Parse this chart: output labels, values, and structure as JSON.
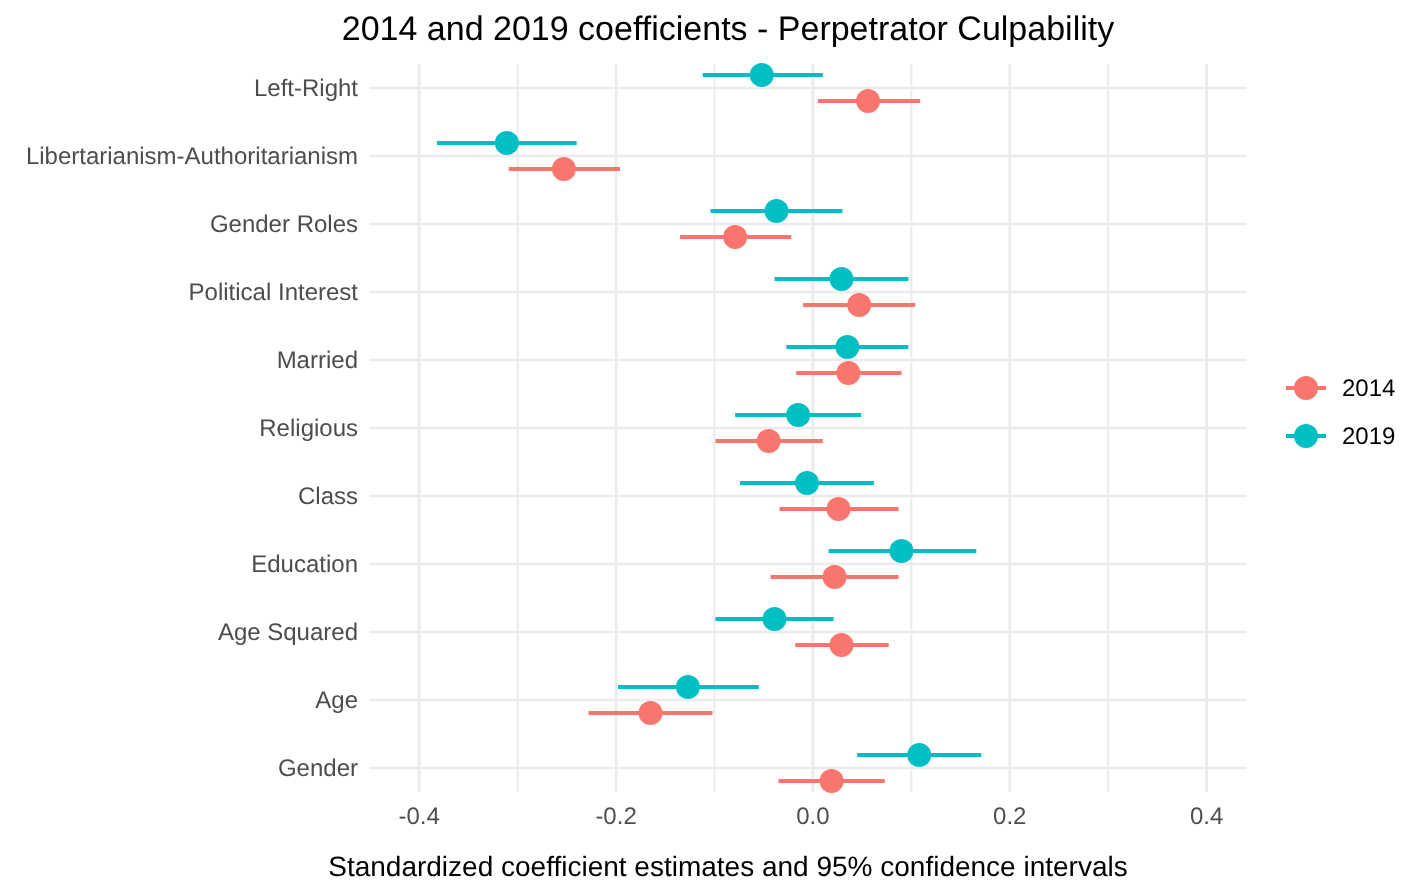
{
  "chart_data": {
    "type": "scatter",
    "orientation": "horizontal",
    "title": "2014 and 2019 coefficients - Perpetrator Culpability",
    "xlabel": "Standardized coefficient estimates and 95% confidence intervals",
    "categories": [
      "Left-Right",
      "Libertarianism-Authoritarianism",
      "Gender Roles",
      "Political Interest",
      "Married",
      "Religious",
      "Class",
      "Education",
      "Age Squared",
      "Age",
      "Gender"
    ],
    "series": [
      {
        "name": "2014",
        "color": "#f8766d",
        "values": [
          0.056,
          -0.253,
          -0.079,
          0.047,
          0.036,
          -0.045,
          0.026,
          0.022,
          0.029,
          -0.165,
          0.019
        ],
        "errors": [
          [
            0.005,
            0.109
          ],
          [
            -0.309,
            -0.196
          ],
          [
            -0.135,
            -0.022
          ],
          [
            -0.01,
            0.104
          ],
          [
            -0.017,
            0.09
          ],
          [
            -0.099,
            0.01
          ],
          [
            -0.034,
            0.087
          ],
          [
            -0.043,
            0.087
          ],
          [
            -0.018,
            0.077
          ],
          [
            -0.228,
            -0.102
          ],
          [
            -0.035,
            0.073
          ]
        ]
      },
      {
        "name": "2019",
        "color": "#00bfc4",
        "values": [
          -0.052,
          -0.311,
          -0.037,
          0.029,
          0.035,
          -0.015,
          -0.006,
          0.09,
          -0.039,
          -0.127,
          0.108
        ],
        "errors": [
          [
            -0.112,
            0.01
          ],
          [
            -0.382,
            -0.24
          ],
          [
            -0.104,
            0.03
          ],
          [
            -0.039,
            0.097
          ],
          [
            -0.027,
            0.097
          ],
          [
            -0.079,
            0.049
          ],
          [
            -0.074,
            0.062
          ],
          [
            0.016,
            0.166
          ],
          [
            -0.099,
            0.021
          ],
          [
            -0.198,
            -0.055
          ],
          [
            0.045,
            0.171
          ]
        ]
      }
    ],
    "xlim": [
      -0.45,
      0.44
    ],
    "xticks": [
      -0.4,
      {
        "value": -0.3,
        "label": null
      },
      -0.2,
      {
        "value": -0.1,
        "label": null
      },
      "0.0",
      {
        "value": 0.1,
        "label": null
      },
      0.2,
      {
        "value": 0.3,
        "label": null
      },
      0.4
    ],
    "grid": true,
    "legend": "right",
    "marker": "circle"
  }
}
